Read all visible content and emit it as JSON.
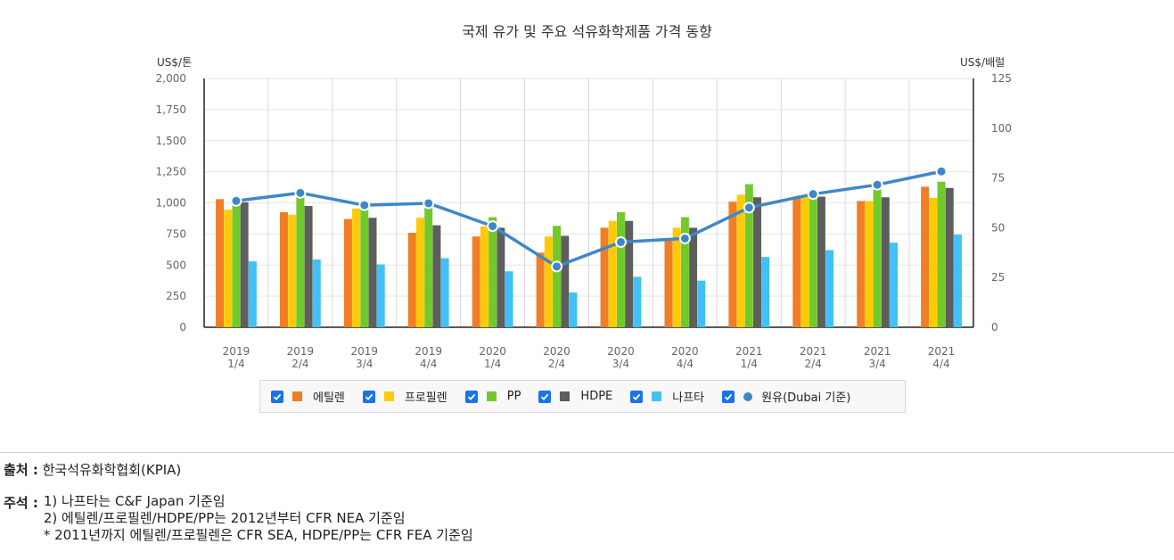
{
  "chart_data": {
    "type": "bar",
    "title": "국제 유가 및 주요 석유화학제품 가격 동향",
    "ylabel_left": "US$/톤",
    "ylabel_right": "US$/배럴",
    "ylim_left": [
      0,
      2000
    ],
    "ylim_right": [
      0,
      125
    ],
    "yticks_left": [
      "2,000",
      "1,750",
      "1,500",
      "1,250",
      "1,000",
      "750",
      "500",
      "250",
      "0"
    ],
    "yticks_right": [
      "125",
      "100",
      "75",
      "50",
      "25",
      "0"
    ],
    "categories": [
      [
        "2019",
        "1/4"
      ],
      [
        "2019",
        "2/4"
      ],
      [
        "2019",
        "3/4"
      ],
      [
        "2019",
        "4/4"
      ],
      [
        "2020",
        "1/4"
      ],
      [
        "2020",
        "2/4"
      ],
      [
        "2020",
        "3/4"
      ],
      [
        "2020",
        "4/4"
      ],
      [
        "2021",
        "1/4"
      ],
      [
        "2021",
        "2/4"
      ],
      [
        "2021",
        "3/4"
      ],
      [
        "2021",
        "4/4"
      ]
    ],
    "series": [
      {
        "name": "에틸렌",
        "color": "#f07e26",
        "axis": "left",
        "kind": "bar",
        "values": [
          1030,
          925,
          870,
          760,
          730,
          600,
          800,
          710,
          1010,
          1040,
          1015,
          1130
        ]
      },
      {
        "name": "프로필렌",
        "color": "#fccb05",
        "axis": "left",
        "kind": "bar",
        "values": [
          945,
          905,
          955,
          880,
          810,
          730,
          855,
          800,
          1065,
          1050,
          1015,
          1040
        ]
      },
      {
        "name": "PP",
        "color": "#72c92a",
        "axis": "left",
        "kind": "bar",
        "values": [
          995,
          1060,
          965,
          960,
          885,
          815,
          925,
          885,
          1150,
          1090,
          1130,
          1170
        ]
      },
      {
        "name": "HDPE",
        "color": "#5e5e5e",
        "axis": "left",
        "kind": "bar",
        "values": [
          1005,
          975,
          880,
          820,
          800,
          735,
          855,
          800,
          1045,
          1050,
          1045,
          1120
        ]
      },
      {
        "name": "나프타",
        "color": "#41c1f7",
        "axis": "left",
        "kind": "bar",
        "values": [
          530,
          545,
          505,
          555,
          450,
          280,
          405,
          375,
          565,
          620,
          680,
          745
        ]
      },
      {
        "name": "원유(Dubai 기준)",
        "color": "#3f87c7",
        "axis": "right",
        "kind": "line",
        "values": [
          63.5,
          67.5,
          61.3,
          62.3,
          50.8,
          30.5,
          42.8,
          44.6,
          60.1,
          66.9,
          71.6,
          78.3
        ]
      }
    ],
    "legend_position": "bottom"
  },
  "footer": {
    "source_label": "출처 :",
    "source_text": "한국석유화학협회(KPIA)",
    "notes_label": "주석 :",
    "notes": [
      "1) 나프타는 C&F Japan 기준임",
      "2) 에틸렌/프로필렌/HDPE/PP는 2012년부터 CFR NEA 기준임",
      "* 2011년까지 에틸렌/프로필렌은 CFR SEA, HDPE/PP는 CFR FEA 기준임"
    ]
  }
}
